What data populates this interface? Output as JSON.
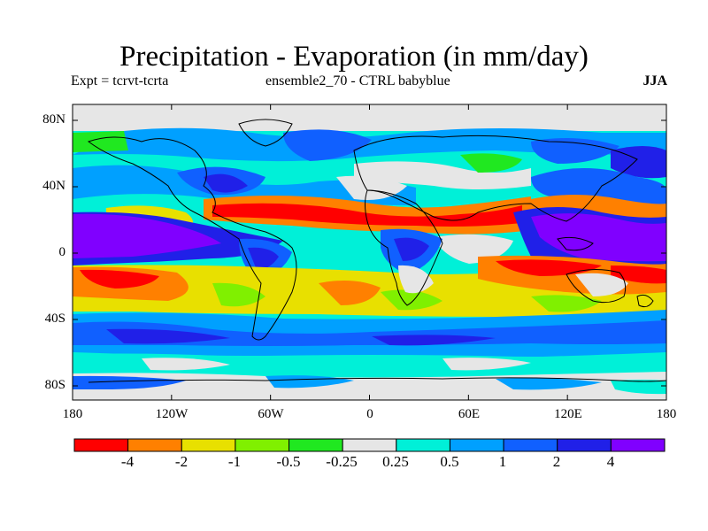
{
  "title": "Precipitation - Evaporation (in mm/day)",
  "subtitle_left": "Expt = tcrvt-tcrta",
  "subtitle_center": "ensemble2_70 - CTRL babyblue",
  "season": "JJA",
  "lat_labels": [
    "80N",
    "40N",
    "0",
    "40S",
    "80S"
  ],
  "lon_labels": [
    "180",
    "120W",
    "60W",
    "0",
    "60E",
    "120E",
    "180"
  ],
  "colorbar": {
    "colors": [
      "#ff0000",
      "#ff8000",
      "#e8e000",
      "#80f000",
      "#20e820",
      "#e6e6e6",
      "#00f0d8",
      "#00a0ff",
      "#1060ff",
      "#2020e8",
      "#8000ff"
    ],
    "labels": [
      "-4",
      "-2",
      "-1",
      "-0.5",
      "-0.25",
      "0.25",
      "0.5",
      "1",
      "2",
      "4"
    ]
  },
  "colors": {
    "ocean_base": "#00f0d8",
    "coast": "#000000",
    "frame": "#000000"
  }
}
